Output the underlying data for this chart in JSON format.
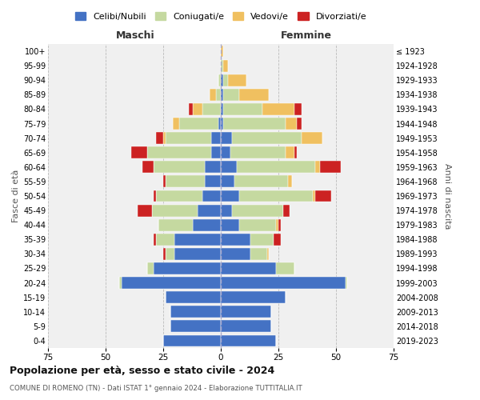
{
  "age_groups": [
    "0-4",
    "5-9",
    "10-14",
    "15-19",
    "20-24",
    "25-29",
    "30-34",
    "35-39",
    "40-44",
    "45-49",
    "50-54",
    "55-59",
    "60-64",
    "65-69",
    "70-74",
    "75-79",
    "80-84",
    "85-89",
    "90-94",
    "95-99",
    "100+"
  ],
  "birth_years": [
    "2019-2023",
    "2014-2018",
    "2009-2013",
    "2004-2008",
    "1999-2003",
    "1994-1998",
    "1989-1993",
    "1984-1988",
    "1979-1983",
    "1974-1978",
    "1969-1973",
    "1964-1968",
    "1959-1963",
    "1954-1958",
    "1949-1953",
    "1944-1948",
    "1939-1943",
    "1934-1938",
    "1929-1933",
    "1924-1928",
    "≤ 1923"
  ],
  "colors": {
    "celibi": "#4472c4",
    "coniugati": "#c5d9a0",
    "vedovi": "#f0c060",
    "divorziati": "#cc2222"
  },
  "maschi": {
    "celibi": [
      25,
      22,
      22,
      24,
      43,
      29,
      20,
      20,
      12,
      10,
      8,
      7,
      7,
      4,
      4,
      1,
      0,
      0,
      0,
      0,
      0
    ],
    "coniugati": [
      0,
      0,
      0,
      0,
      1,
      3,
      4,
      8,
      15,
      20,
      20,
      17,
      22,
      28,
      20,
      17,
      8,
      2,
      1,
      0,
      0
    ],
    "vedovi": [
      0,
      0,
      0,
      0,
      0,
      0,
      0,
      0,
      0,
      0,
      0,
      0,
      0,
      0,
      1,
      3,
      4,
      3,
      0,
      0,
      0
    ],
    "divorziati": [
      0,
      0,
      0,
      0,
      0,
      0,
      1,
      1,
      0,
      6,
      1,
      1,
      5,
      7,
      3,
      0,
      2,
      0,
      0,
      0,
      0
    ]
  },
  "femmine": {
    "celibi": [
      24,
      22,
      22,
      28,
      54,
      24,
      13,
      13,
      8,
      5,
      8,
      6,
      7,
      4,
      5,
      1,
      1,
      1,
      1,
      0,
      0
    ],
    "coniugati": [
      0,
      0,
      0,
      0,
      1,
      8,
      7,
      10,
      16,
      22,
      32,
      23,
      34,
      24,
      30,
      27,
      17,
      7,
      2,
      1,
      0
    ],
    "vedovi": [
      0,
      0,
      0,
      0,
      0,
      0,
      1,
      0,
      1,
      0,
      1,
      2,
      2,
      4,
      9,
      5,
      14,
      13,
      8,
      2,
      1
    ],
    "divorziati": [
      0,
      0,
      0,
      0,
      0,
      0,
      0,
      3,
      1,
      3,
      7,
      0,
      9,
      1,
      0,
      2,
      3,
      0,
      0,
      0,
      0
    ]
  },
  "title": "Popolazione per età, sesso e stato civile - 2024",
  "subtitle": "COMUNE DI ROMENO (TN) - Dati ISTAT 1° gennaio 2024 - Elaborazione TUTTITALIA.IT",
  "xlabel_left": "Maschi",
  "xlabel_right": "Femmine",
  "ylabel_left": "Fasce di età",
  "ylabel_right": "Anni di nascita",
  "xlim": 75,
  "legend_labels": [
    "Celibi/Nubili",
    "Coniugati/e",
    "Vedovi/e",
    "Divorziati/e"
  ],
  "bg_color": "#ffffff",
  "grid_color": "#cccccc"
}
